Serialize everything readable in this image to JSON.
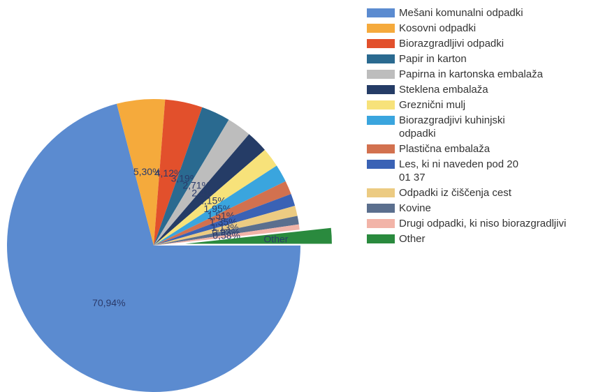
{
  "chart_data": {
    "type": "pie",
    "categories": [
      "Mešani komunalni odpadki",
      "Kosovni odpadki",
      "Biorazgradljivi odpadki",
      "Papir in karton",
      "Papirna in kartonska embalaža",
      "Steklena embalaža",
      "Greznični mulj",
      "Biorazgradjivi kuhinjski\nodpadki",
      "Plastična embalaža",
      "Les, ki ni naveden pod 20\n01 37",
      "Odpadki iz čiščenja cest",
      "Kovine",
      "Drugi odpadki, ki niso biorazgradljivi",
      "Other"
    ],
    "values": [
      70.94,
      5.3,
      4.12,
      3.19,
      2.71,
      2.41,
      2.15,
      1.95,
      1.51,
      1.35,
      1.13,
      0.93,
      0.58,
      1.73
    ],
    "value_labels": [
      "70,94%",
      "5,30%",
      "4,12%",
      "3,19%",
      "2,71%",
      "2,41%",
      "2,15%",
      "1,95%",
      "1,51%",
      "1,35%",
      "1,13%",
      "0,93%",
      "0,58%",
      null
    ],
    "colors": [
      "#5b8bd0",
      "#f5aa3c",
      "#e2502c",
      "#2a6a90",
      "#bdbdbd",
      "#253c66",
      "#f7e27a",
      "#3aa5de",
      "#d2714f",
      "#3a62b5",
      "#eccb82",
      "#5b6f8e",
      "#f2b4a8",
      "#2a8a3e"
    ],
    "exploded": "Other",
    "legend": "right"
  }
}
